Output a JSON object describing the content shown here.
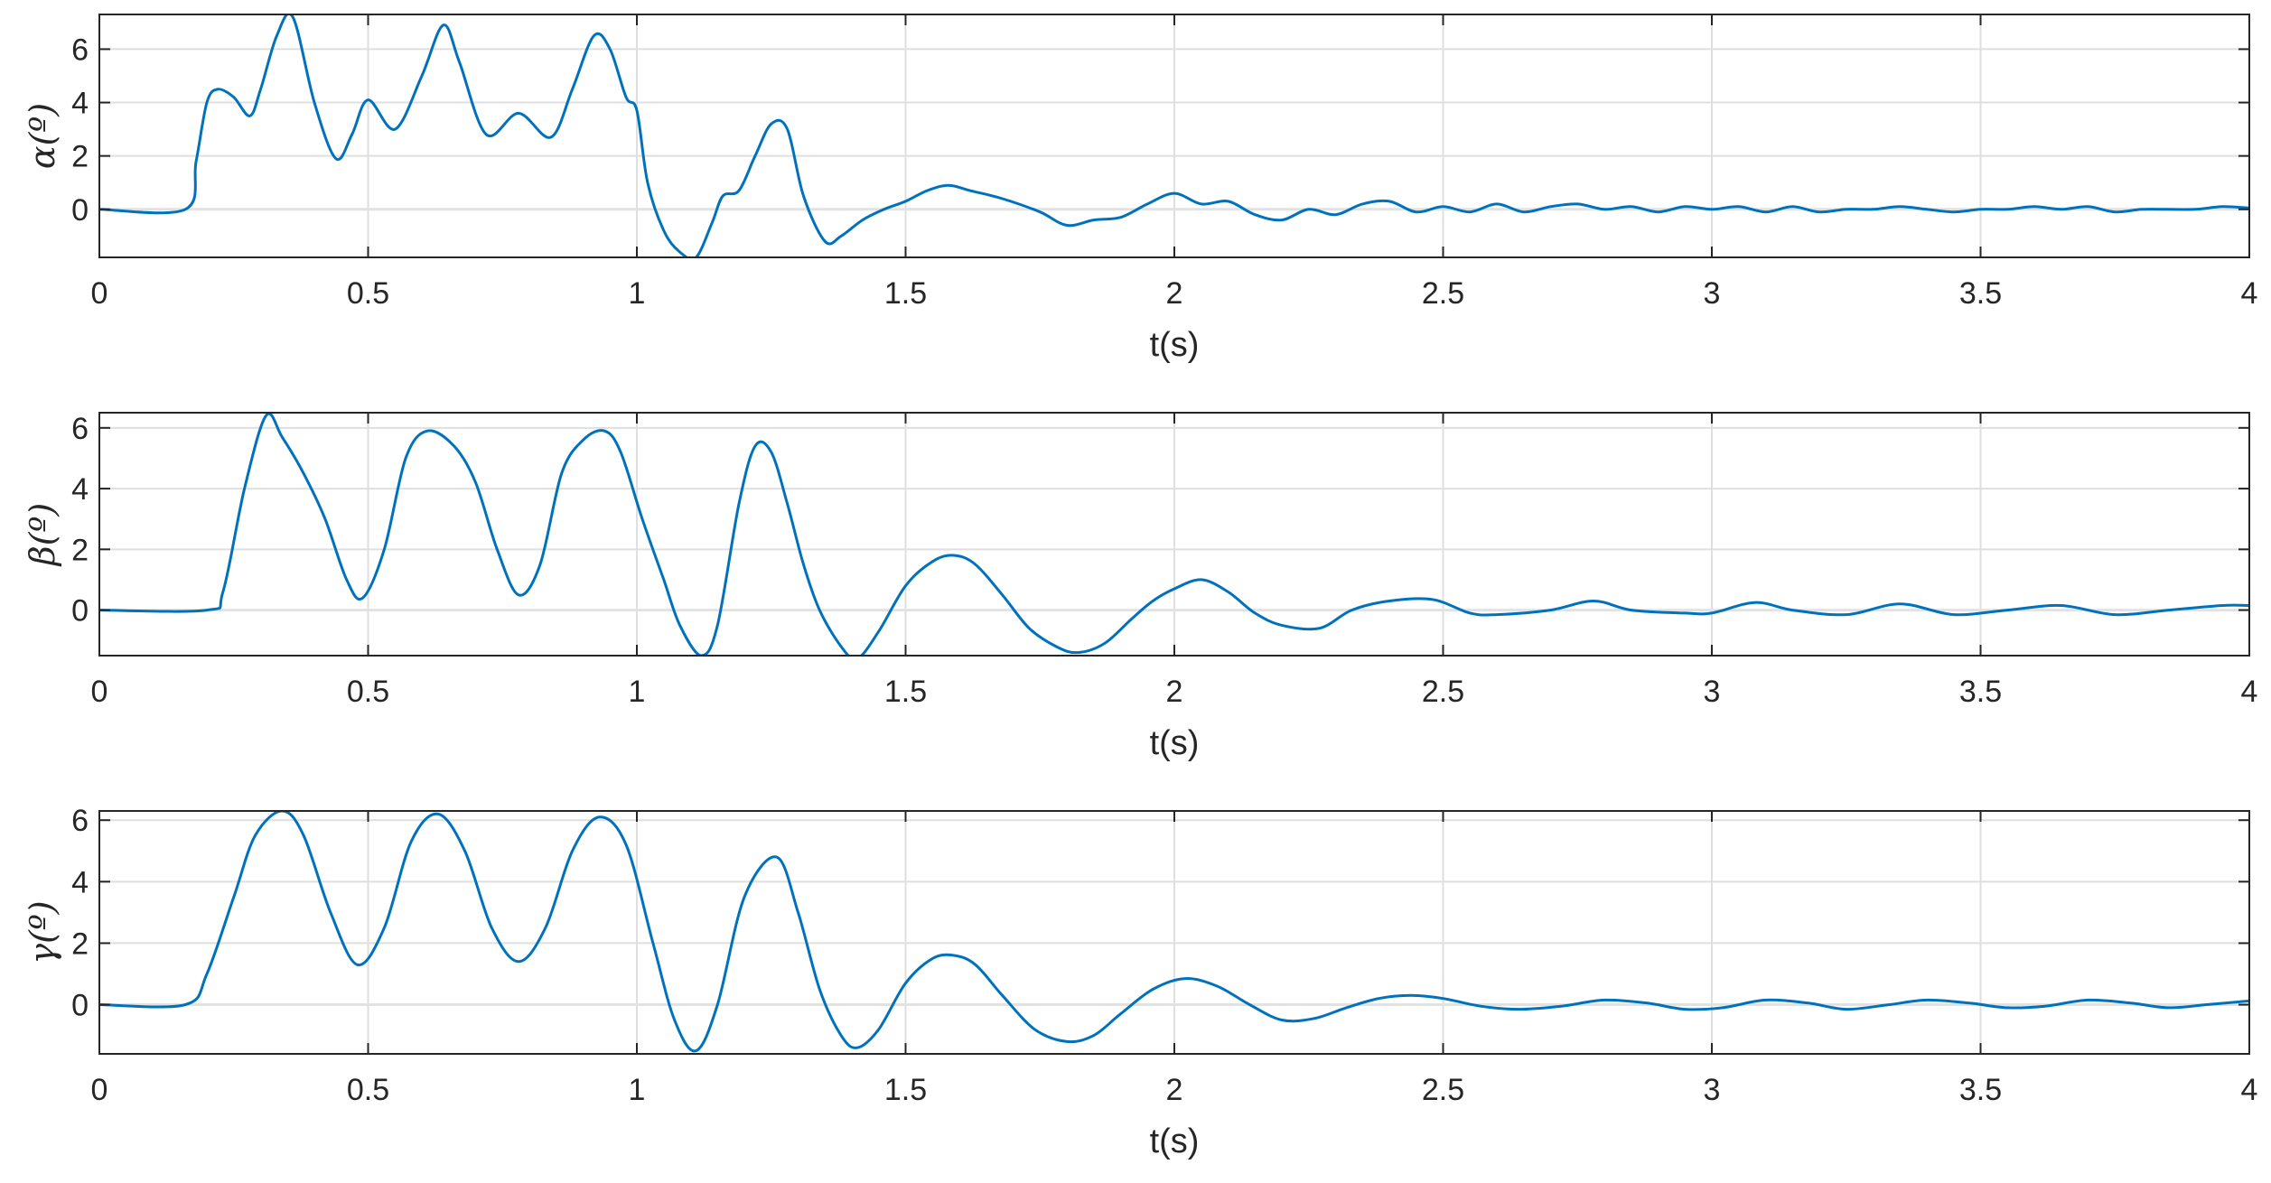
{
  "colors": {
    "series": "#0072bd",
    "axis": "#262626",
    "grid": "#dfdfdf"
  },
  "chart_data": [
    {
      "type": "line",
      "xlabel": "t(s)",
      "ylabel": "α(º)",
      "xlim": [
        0,
        4
      ],
      "ylim": [
        -1.8,
        7.3
      ],
      "xticks": [
        0,
        0.5,
        1,
        1.5,
        2,
        2.5,
        3,
        3.5,
        4
      ],
      "xtick_labels": [
        "0",
        "0.5",
        "1",
        "1.5",
        "2",
        "2.5",
        "3",
        "3.5",
        "4"
      ],
      "yticks": [
        0,
        2,
        4,
        6
      ],
      "ytick_labels": [
        "0",
        "2",
        "4",
        "6"
      ],
      "grid": true,
      "series": [
        {
          "x": [
            0,
            0.16,
            0.18,
            0.2,
            0.22,
            0.25,
            0.28,
            0.3,
            0.33,
            0.36,
            0.4,
            0.44,
            0.47,
            0.5,
            0.55,
            0.6,
            0.64,
            0.67,
            0.72,
            0.78,
            0.84,
            0.88,
            0.92,
            0.95,
            0.98,
            1.0,
            1.02,
            1.05,
            1.08,
            1.11,
            1.14,
            1.16,
            1.19,
            1.22,
            1.25,
            1.28,
            1.31,
            1.35,
            1.38,
            1.42,
            1.46,
            1.5,
            1.54,
            1.58,
            1.62,
            1.68,
            1.75,
            1.8,
            1.85,
            1.9,
            1.95,
            2.0,
            2.05,
            2.1,
            2.15,
            2.2,
            2.25,
            2.3,
            2.35,
            2.4,
            2.45,
            2.5,
            2.55,
            2.6,
            2.65,
            2.7,
            2.75,
            2.8,
            2.85,
            2.9,
            2.95,
            3.0,
            3.05,
            3.1,
            3.15,
            3.2,
            3.25,
            3.3,
            3.35,
            3.4,
            3.45,
            3.5,
            3.55,
            3.6,
            3.65,
            3.7,
            3.75,
            3.8,
            3.85,
            3.9,
            3.95,
            4.0
          ],
          "y": [
            0,
            0,
            1.8,
            4.0,
            4.5,
            4.2,
            3.5,
            4.5,
            6.5,
            7.2,
            4.0,
            1.9,
            2.8,
            4.1,
            3.0,
            5.0,
            6.9,
            5.5,
            2.8,
            3.6,
            2.7,
            4.5,
            6.5,
            6.0,
            4.2,
            3.7,
            1.0,
            -0.8,
            -1.6,
            -1.8,
            -0.5,
            0.5,
            0.7,
            2.0,
            3.2,
            3.0,
            0.5,
            -1.2,
            -1.0,
            -0.4,
            0.0,
            0.3,
            0.7,
            0.9,
            0.7,
            0.4,
            -0.1,
            -0.6,
            -0.4,
            -0.3,
            0.2,
            0.6,
            0.2,
            0.3,
            -0.2,
            -0.4,
            0.0,
            -0.2,
            0.2,
            0.3,
            -0.1,
            0.1,
            -0.1,
            0.2,
            -0.1,
            0.1,
            0.2,
            0.0,
            0.1,
            -0.1,
            0.1,
            0.0,
            0.1,
            -0.1,
            0.1,
            -0.1,
            0.0,
            0.0,
            0.1,
            0.0,
            -0.1,
            0.0,
            0.0,
            0.1,
            0.0,
            0.1,
            -0.1,
            0.0,
            0.0,
            0.0,
            0.1,
            0.05
          ]
        }
      ]
    },
    {
      "type": "line",
      "xlabel": "t(s)",
      "ylabel": "β(º)",
      "xlim": [
        0,
        4
      ],
      "ylim": [
        -1.5,
        6.5
      ],
      "xticks": [
        0,
        0.5,
        1,
        1.5,
        2,
        2.5,
        3,
        3.5,
        4
      ],
      "xtick_labels": [
        "0",
        "0.5",
        "1",
        "1.5",
        "2",
        "2.5",
        "3",
        "3.5",
        "4"
      ],
      "yticks": [
        0,
        2,
        4,
        6
      ],
      "ytick_labels": [
        "0",
        "2",
        "4",
        "6"
      ],
      "grid": true,
      "series": [
        {
          "x": [
            0,
            0.2,
            0.23,
            0.27,
            0.31,
            0.34,
            0.38,
            0.42,
            0.46,
            0.49,
            0.53,
            0.57,
            0.61,
            0.66,
            0.7,
            0.74,
            0.78,
            0.82,
            0.86,
            0.9,
            0.94,
            0.97,
            1.01,
            1.05,
            1.08,
            1.12,
            1.15,
            1.19,
            1.22,
            1.25,
            1.28,
            1.31,
            1.34,
            1.38,
            1.41,
            1.45,
            1.5,
            1.55,
            1.59,
            1.63,
            1.68,
            1.73,
            1.78,
            1.82,
            1.87,
            1.92,
            1.96,
            2.0,
            2.05,
            2.1,
            2.15,
            2.2,
            2.27,
            2.33,
            2.4,
            2.48,
            2.55,
            2.6,
            2.7,
            2.78,
            2.85,
            2.95,
            3.0,
            3.08,
            3.15,
            3.25,
            3.35,
            3.45,
            3.55,
            3.65,
            3.75,
            3.85,
            3.95,
            4.0
          ],
          "y": [
            0,
            0,
            0.6,
            4.0,
            6.4,
            5.7,
            4.5,
            3.0,
            1.0,
            0.4,
            2.0,
            5.0,
            5.9,
            5.4,
            4.2,
            2.0,
            0.5,
            1.5,
            4.5,
            5.6,
            5.9,
            5.2,
            3.0,
            1.0,
            -0.5,
            -1.5,
            -0.5,
            3.5,
            5.4,
            5.2,
            3.5,
            1.5,
            0.0,
            -1.2,
            -1.6,
            -0.7,
            0.8,
            1.6,
            1.8,
            1.5,
            0.5,
            -0.6,
            -1.2,
            -1.4,
            -1.1,
            -0.3,
            0.3,
            0.7,
            1.0,
            0.6,
            -0.1,
            -0.5,
            -0.6,
            0.0,
            0.3,
            0.35,
            -0.1,
            -0.15,
            0.0,
            0.3,
            0.0,
            -0.1,
            -0.1,
            0.25,
            0.0,
            -0.15,
            0.2,
            -0.15,
            0.0,
            0.15,
            -0.15,
            0.0,
            0.15,
            0.15
          ]
        }
      ]
    },
    {
      "type": "line",
      "xlabel": "t(s)",
      "ylabel": "γ(º)",
      "xlim": [
        0,
        4
      ],
      "ylim": [
        -1.6,
        6.3
      ],
      "xticks": [
        0,
        0.5,
        1,
        1.5,
        2,
        2.5,
        3,
        3.5,
        4
      ],
      "xtick_labels": [
        "0",
        "0.5",
        "1",
        "1.5",
        "2",
        "2.5",
        "3",
        "3.5",
        "4"
      ],
      "yticks": [
        0,
        2,
        4,
        6
      ],
      "ytick_labels": [
        "0",
        "2",
        "4",
        "6"
      ],
      "grid": true,
      "series": [
        {
          "x": [
            0,
            0.16,
            0.2,
            0.25,
            0.29,
            0.34,
            0.38,
            0.43,
            0.48,
            0.53,
            0.58,
            0.63,
            0.68,
            0.73,
            0.78,
            0.83,
            0.88,
            0.93,
            0.98,
            1.03,
            1.07,
            1.11,
            1.15,
            1.2,
            1.26,
            1.3,
            1.34,
            1.38,
            1.41,
            1.45,
            1.5,
            1.55,
            1.59,
            1.63,
            1.68,
            1.74,
            1.8,
            1.85,
            1.9,
            1.96,
            2.02,
            2.08,
            2.14,
            2.2,
            2.26,
            2.32,
            2.38,
            2.44,
            2.5,
            2.57,
            2.64,
            2.72,
            2.8,
            2.88,
            2.95,
            3.02,
            3.1,
            3.18,
            3.25,
            3.33,
            3.4,
            3.48,
            3.55,
            3.62,
            3.7,
            3.78,
            3.85,
            3.92,
            4.0
          ],
          "y": [
            0,
            0,
            1.0,
            3.5,
            5.5,
            6.3,
            5.5,
            3.0,
            1.3,
            2.5,
            5.3,
            6.2,
            5.0,
            2.5,
            1.4,
            2.5,
            5.0,
            6.1,
            5.2,
            2.0,
            -0.5,
            -1.5,
            0.0,
            3.5,
            4.8,
            3.0,
            0.5,
            -1.0,
            -1.4,
            -0.8,
            0.7,
            1.5,
            1.6,
            1.3,
            0.3,
            -0.8,
            -1.2,
            -1.0,
            -0.3,
            0.5,
            0.85,
            0.6,
            0.0,
            -0.5,
            -0.45,
            -0.1,
            0.2,
            0.3,
            0.2,
            -0.05,
            -0.15,
            -0.05,
            0.15,
            0.05,
            -0.15,
            -0.1,
            0.15,
            0.05,
            -0.15,
            0.0,
            0.15,
            0.05,
            -0.1,
            -0.05,
            0.15,
            0.05,
            -0.1,
            0.0,
            0.12
          ]
        }
      ]
    }
  ]
}
